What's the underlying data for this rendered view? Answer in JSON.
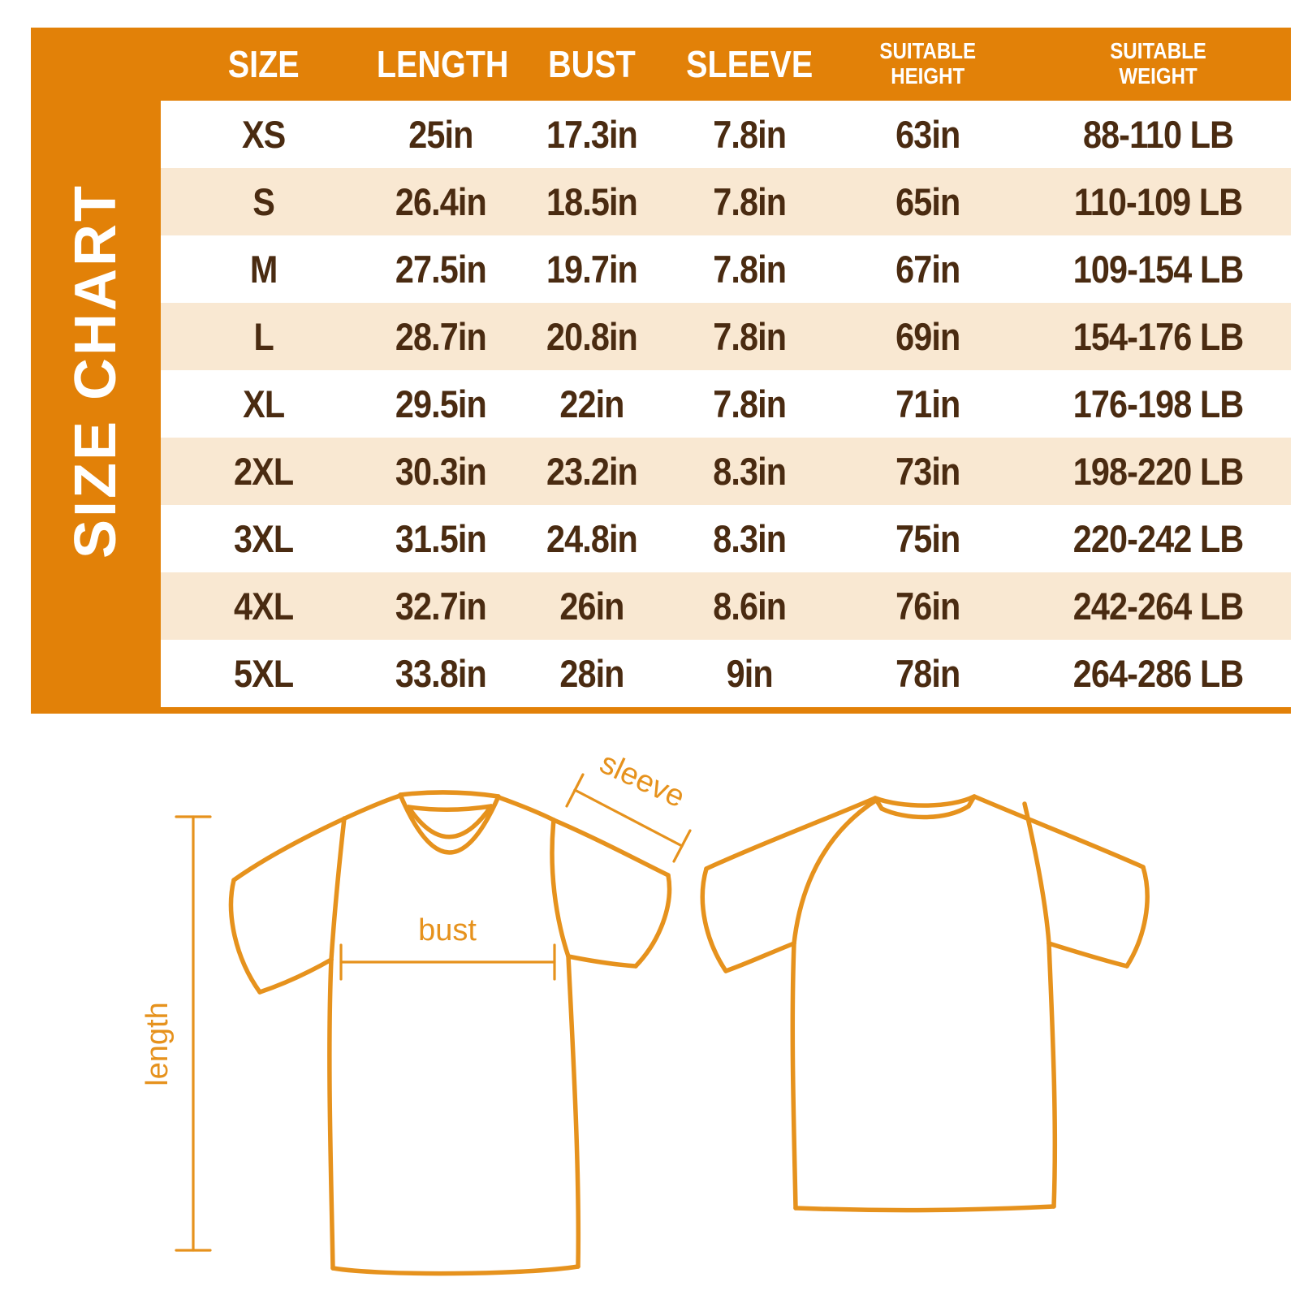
{
  "title": "SIZE CHART",
  "table": {
    "columns": [
      {
        "lines": [
          "SIZE"
        ]
      },
      {
        "lines": [
          "LENGTH"
        ]
      },
      {
        "lines": [
          "BUST"
        ]
      },
      {
        "lines": [
          "SLEEVE"
        ]
      },
      {
        "lines": [
          "SUITABLE",
          "HEIGHT"
        ]
      },
      {
        "lines": [
          "SUITABLE",
          "WEIGHT"
        ]
      }
    ]
  },
  "chart_data": {
    "type": "table",
    "title": "SIZE CHART",
    "columns": [
      "SIZE",
      "LENGTH",
      "BUST",
      "SLEEVE",
      "SUITABLE HEIGHT",
      "SUITABLE WEIGHT"
    ],
    "rows": [
      [
        "XS",
        "25in",
        "17.3in",
        "7.8in",
        "63in",
        "88-110 LB"
      ],
      [
        "S",
        "26.4in",
        "18.5in",
        "7.8in",
        "65in",
        "110-109 LB"
      ],
      [
        "M",
        "27.5in",
        "19.7in",
        "7.8in",
        "67in",
        "109-154 LB"
      ],
      [
        "L",
        "28.7in",
        "20.8in",
        "7.8in",
        "69in",
        "154-176 LB"
      ],
      [
        "XL",
        "29.5in",
        "22in",
        "7.8in",
        "71in",
        "176-198 LB"
      ],
      [
        "2XL",
        "30.3in",
        "23.2in",
        "8.3in",
        "73in",
        "198-220 LB"
      ],
      [
        "3XL",
        "31.5in",
        "24.8in",
        "8.3in",
        "75in",
        "220-242 LB"
      ],
      [
        "4XL",
        "32.7in",
        "26in",
        "8.6in",
        "76in",
        "242-264 LB"
      ],
      [
        "5XL",
        "33.8in",
        "28in",
        "9in",
        "78in",
        "264-286 LB"
      ]
    ]
  },
  "diagram": {
    "labels": {
      "length": "length",
      "bust": "bust",
      "sleeve": "sleeve"
    }
  },
  "colors": {
    "orange": "#E28108",
    "row_alt_peach": "#F9E8D2",
    "text_brown": "#4A2B11",
    "outline_orange": "#E6921D",
    "header_text": "#FFFFFF"
  }
}
